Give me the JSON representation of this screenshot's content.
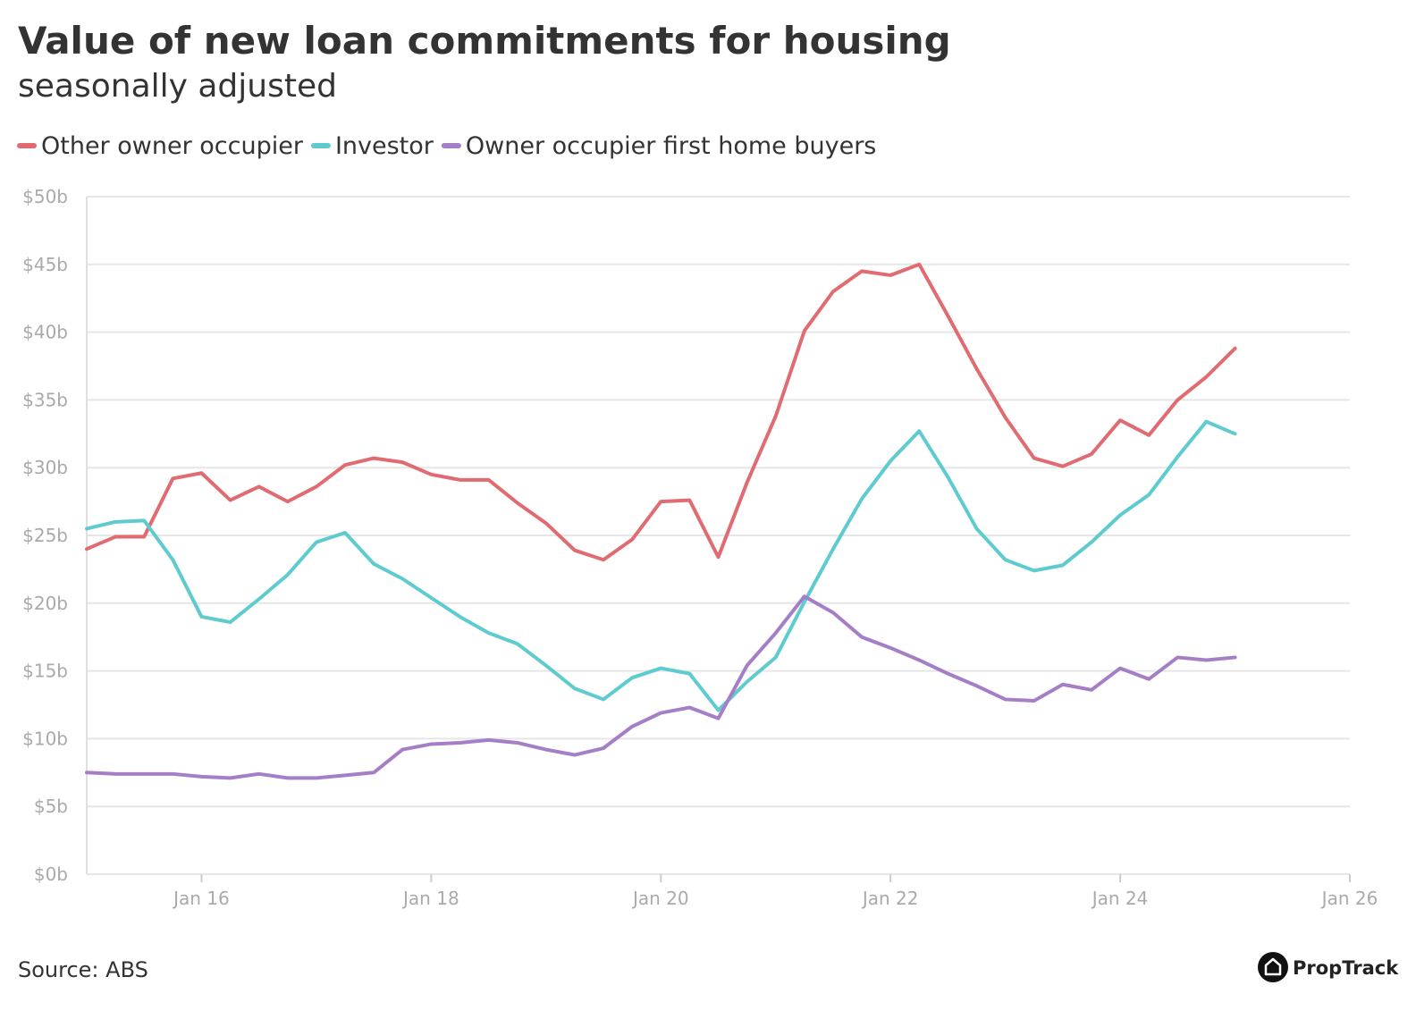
{
  "chart_data": {
    "type": "line",
    "title": "Value of new loan commitments for housing",
    "subtitle": "seasonally adjusted",
    "source": "Source: ABS",
    "logo": "PropTrack",
    "legend": "top-left",
    "grid": true,
    "x": [
      "Jan 15",
      "Apr 15",
      "Jul 15",
      "Oct 15",
      "Jan 16",
      "Apr 16",
      "Jul 16",
      "Oct 16",
      "Jan 17",
      "Apr 17",
      "Jul 17",
      "Oct 17",
      "Jan 18",
      "Apr 18",
      "Jul 18",
      "Oct 18",
      "Jan 19",
      "Apr 19",
      "Jul 19",
      "Oct 19",
      "Jan 20",
      "Apr 20",
      "Jul 20",
      "Oct 20",
      "Jan 21",
      "Apr 21",
      "Jul 21",
      "Oct 21",
      "Jan 22",
      "Apr 22",
      "Jul 22",
      "Oct 22",
      "Jan 23",
      "Apr 23",
      "Jul 23",
      "Oct 23",
      "Jan 24",
      "Apr 24",
      "Jul 24",
      "Oct 24",
      "Jan 25"
    ],
    "xlim": [
      "Jan 15",
      "Jan 26"
    ],
    "xticks": [
      "Jan 16",
      "Jan 18",
      "Jan 20",
      "Jan 22",
      "Jan 24",
      "Jan 26"
    ],
    "ylim": [
      0,
      50
    ],
    "yticks": [
      {
        "value": 0,
        "label": "$0b"
      },
      {
        "value": 5,
        "label": "$5b"
      },
      {
        "value": 10,
        "label": "$10b"
      },
      {
        "value": 15,
        "label": "$15b"
      },
      {
        "value": 20,
        "label": "$20b"
      },
      {
        "value": 25,
        "label": "$25b"
      },
      {
        "value": 30,
        "label": "$30b"
      },
      {
        "value": 35,
        "label": "$35b"
      },
      {
        "value": 40,
        "label": "$40b"
      },
      {
        "value": 45,
        "label": "$45b"
      },
      {
        "value": 50,
        "label": "$50b"
      }
    ],
    "series": [
      {
        "name": "Other owner occupier",
        "color": "#e06b71",
        "values": [
          24.0,
          24.9,
          24.9,
          29.2,
          29.6,
          27.6,
          28.6,
          27.5,
          28.6,
          30.2,
          30.7,
          30.4,
          29.5,
          29.1,
          29.1,
          27.4,
          25.9,
          23.9,
          23.2,
          24.7,
          27.5,
          27.6,
          23.4,
          28.9,
          33.8,
          40.1,
          43.0,
          44.5,
          44.2,
          45.0,
          41.2,
          37.3,
          33.7,
          30.7,
          30.1,
          31.0,
          33.5,
          32.4,
          35.0,
          36.7,
          38.8
        ]
      },
      {
        "name": "Investor",
        "color": "#5ecbcf",
        "values": [
          25.5,
          26.0,
          26.1,
          23.2,
          19.0,
          18.6,
          20.3,
          22.1,
          24.5,
          25.2,
          22.9,
          21.8,
          20.4,
          19.0,
          17.8,
          17.0,
          15.4,
          13.7,
          12.9,
          14.5,
          15.2,
          14.8,
          12.1,
          14.2,
          16.0,
          20.1,
          24.0,
          27.7,
          30.5,
          32.7,
          29.3,
          25.5,
          23.2,
          22.4,
          22.8,
          24.5,
          26.5,
          28.0,
          30.8,
          33.4,
          32.5
        ]
      },
      {
        "name": "Owner occupier first home buyers",
        "color": "#a47fc8",
        "values": [
          7.5,
          7.4,
          7.4,
          7.4,
          7.2,
          7.1,
          7.4,
          7.1,
          7.1,
          7.3,
          7.5,
          9.2,
          9.6,
          9.7,
          9.9,
          9.7,
          9.2,
          8.8,
          9.3,
          10.9,
          11.9,
          12.3,
          11.5,
          15.4,
          17.8,
          20.5,
          19.3,
          17.5,
          16.7,
          15.8,
          14.8,
          13.9,
          12.9,
          12.8,
          14.0,
          13.6,
          15.2,
          14.4,
          16.0,
          15.8,
          16.0
        ]
      }
    ]
  }
}
